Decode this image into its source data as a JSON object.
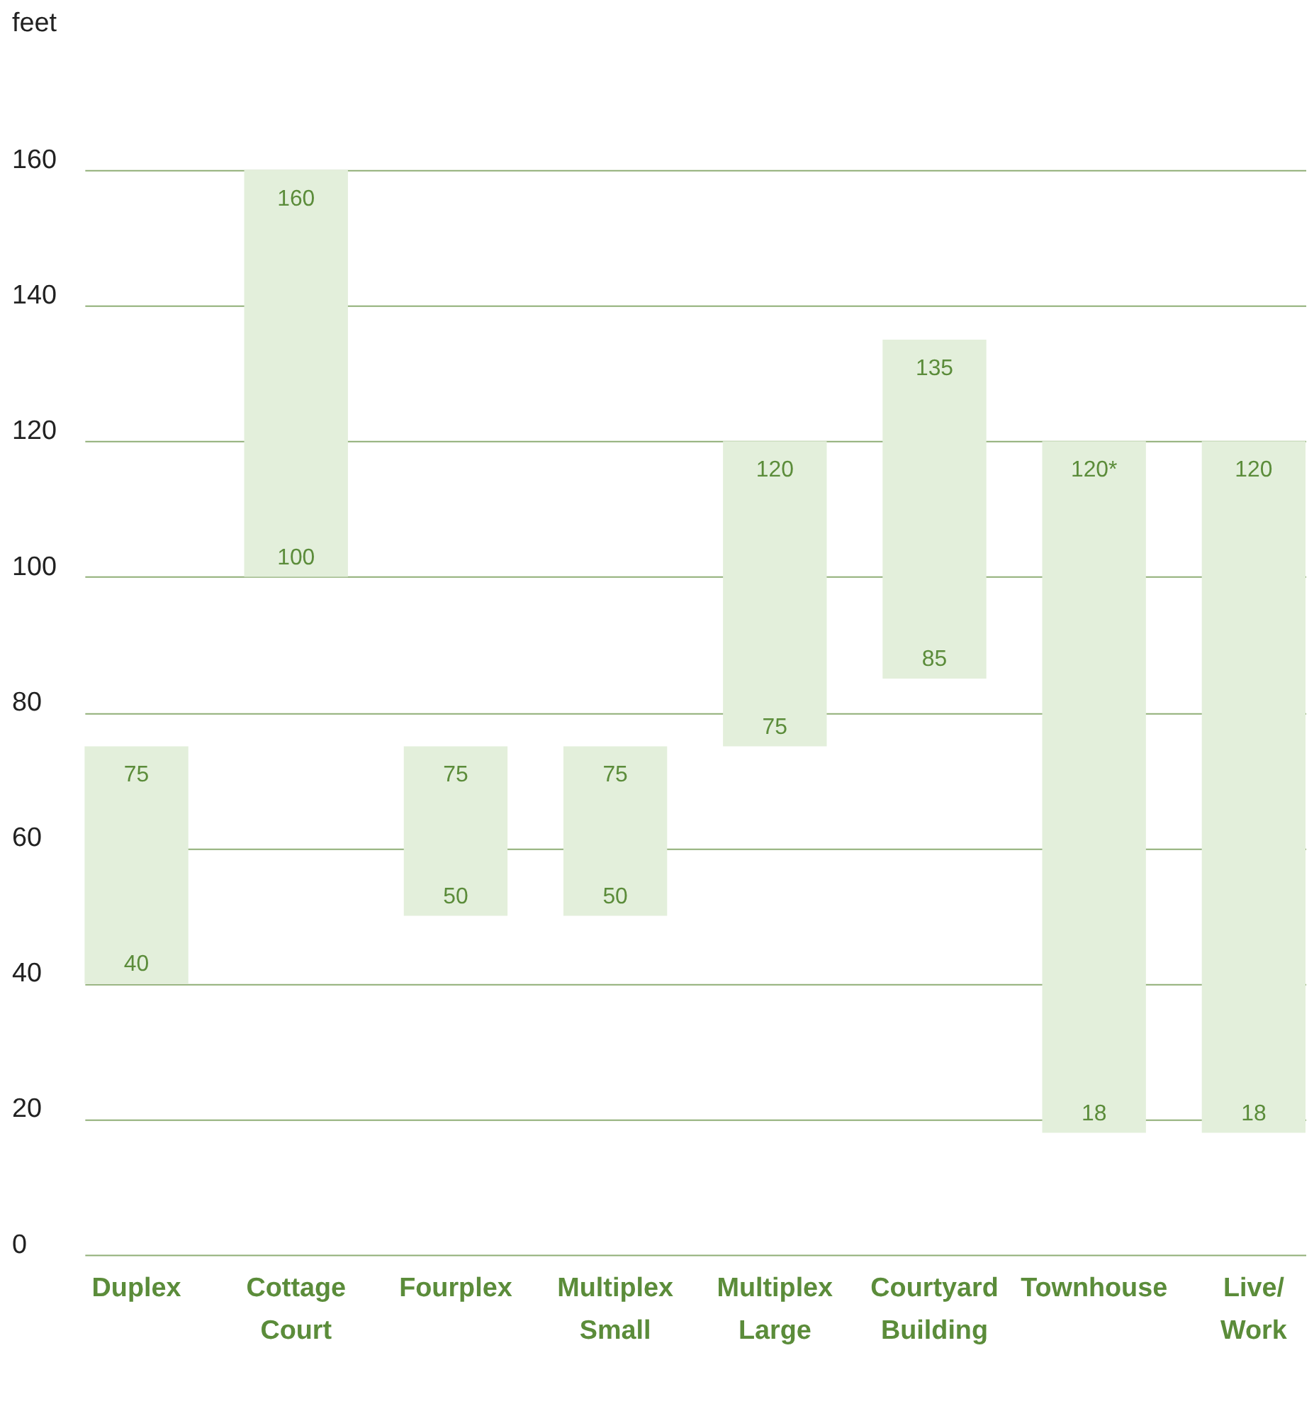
{
  "chart_data": {
    "type": "bar",
    "ylabel": "feet",
    "categories": [
      "Duplex",
      "Cottage Court",
      "Fourplex",
      "Multiplex Small",
      "Multiplex Large",
      "Courtyard Building",
      "Townhouse",
      "Live/Work"
    ],
    "base": [
      40,
      100,
      50,
      50,
      75,
      85,
      18,
      18
    ],
    "values": [
      35,
      60,
      25,
      25,
      45,
      50,
      102,
      102
    ],
    "color": "#e3efdb",
    "ylim": [
      0,
      160
    ],
    "yticks": [
      0,
      20,
      40,
      60,
      80,
      100,
      120,
      140,
      160
    ],
    "grid": "y",
    "annotations": [
      {
        "text": "75",
        "x": "Duplex",
        "y": 75
      },
      {
        "text": "40",
        "x": "Duplex",
        "y": 40
      },
      {
        "text": "160",
        "x": "Cottage Court",
        "y": 160
      },
      {
        "text": "100",
        "x": "Cottage Court",
        "y": 100
      },
      {
        "text": "75",
        "x": "Fourplex",
        "y": 75
      },
      {
        "text": "50",
        "x": "Fourplex",
        "y": 50
      },
      {
        "text": "75",
        "x": "Multiplex Small",
        "y": 75
      },
      {
        "text": "50",
        "x": "Multiplex Small",
        "y": 50
      },
      {
        "text": "120",
        "x": "Multiplex Large",
        "y": 120
      },
      {
        "text": "75",
        "x": "Multiplex Large",
        "y": 75
      },
      {
        "text": "135",
        "x": "Courtyard Building",
        "y": 135
      },
      {
        "text": "85",
        "x": "Courtyard Building",
        "y": 85
      },
      {
        "text": "120*",
        "x": "Townhouse",
        "y": 120
      },
      {
        "text": "18",
        "x": "Townhouse",
        "y": 18
      },
      {
        "text": "120",
        "x": "Live/Work",
        "y": 120
      },
      {
        "text": "18",
        "x": "Live/Work",
        "y": 18
      }
    ]
  }
}
